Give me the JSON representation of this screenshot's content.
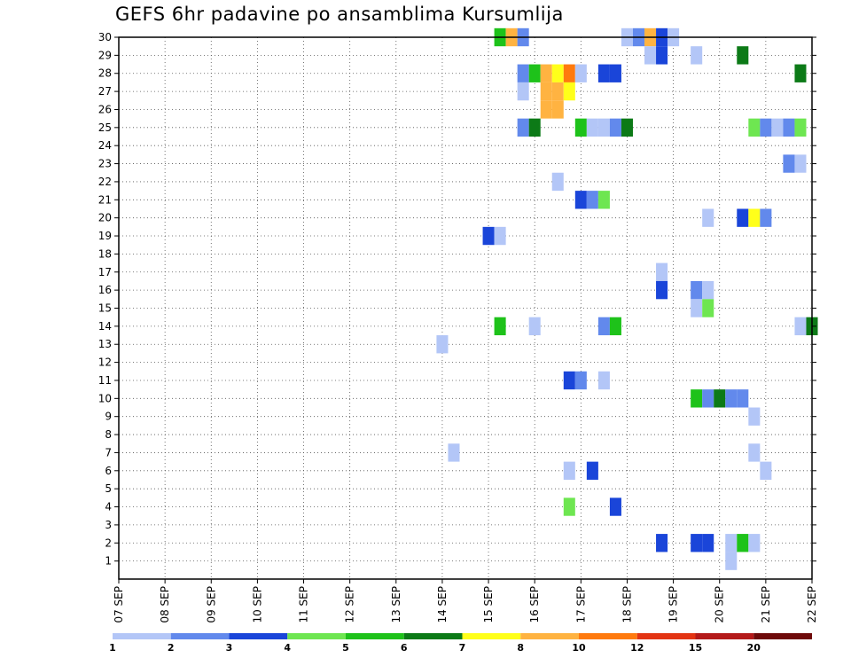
{
  "chart_data": {
    "type": "heatmap",
    "title": "GEFS 6hr padavine po ansamblima Kursumlija",
    "x_tick_labels": [
      "07 SEP",
      "08 SEP",
      "09 SEP",
      "10 SEP",
      "11 SEP",
      "12 SEP",
      "13 SEP",
      "14 SEP",
      "15 SEP",
      "16 SEP",
      "17 SEP",
      "18 SEP",
      "19 SEP",
      "20 SEP",
      "21 SEP",
      "22 SEP"
    ],
    "y_tick_labels": [
      1,
      2,
      3,
      4,
      5,
      6,
      7,
      8,
      9,
      10,
      11,
      12,
      13,
      14,
      15,
      16,
      17,
      18,
      19,
      20,
      21,
      22,
      23,
      24,
      25,
      26,
      27,
      28,
      29,
      30
    ],
    "y_range": [
      0,
      30
    ],
    "x_unit": "6h steps from 07 SEP 00Z",
    "x_range": [
      0,
      60
    ],
    "grid": true,
    "colorbar": {
      "levels": [
        1,
        2,
        3,
        4,
        5,
        6,
        7,
        8,
        10,
        12,
        15,
        20
      ],
      "colors": [
        "#b3c6f7",
        "#6289ec",
        "#1a45d9",
        "#6ee651",
        "#1ec21a",
        "#0c7a17",
        "#ffff1a",
        "#ffb341",
        "#ff7a0e",
        "#e33413",
        "#b41a1a",
        "#6e0a0a"
      ]
    },
    "cells": [
      {
        "member": 30,
        "t": 33,
        "v": 5
      },
      {
        "member": 30,
        "t": 34,
        "v": 8
      },
      {
        "member": 30,
        "t": 35,
        "v": 2
      },
      {
        "member": 30,
        "t": 44,
        "v": 1
      },
      {
        "member": 30,
        "t": 45,
        "v": 2
      },
      {
        "member": 30,
        "t": 46,
        "v": 8
      },
      {
        "member": 30,
        "t": 47,
        "v": 3
      },
      {
        "member": 30,
        "t": 48,
        "v": 1
      },
      {
        "member": 29,
        "t": 46,
        "v": 1
      },
      {
        "member": 29,
        "t": 47,
        "v": 3
      },
      {
        "member": 29,
        "t": 50,
        "v": 1
      },
      {
        "member": 29,
        "t": 54,
        "v": 6
      },
      {
        "member": 28,
        "t": 35,
        "v": 2
      },
      {
        "member": 28,
        "t": 36,
        "v": 5
      },
      {
        "member": 28,
        "t": 37,
        "v": 8
      },
      {
        "member": 28,
        "t": 38,
        "v": 7
      },
      {
        "member": 28,
        "t": 39,
        "v": 10
      },
      {
        "member": 28,
        "t": 40,
        "v": 1
      },
      {
        "member": 28,
        "t": 42,
        "v": 3
      },
      {
        "member": 28,
        "t": 43,
        "v": 3
      },
      {
        "member": 28,
        "t": 59,
        "v": 6
      },
      {
        "member": 27,
        "t": 35,
        "v": 1
      },
      {
        "member": 27,
        "t": 37,
        "v": 8
      },
      {
        "member": 27,
        "t": 38,
        "v": 8
      },
      {
        "member": 27,
        "t": 39,
        "v": 7
      },
      {
        "member": 26,
        "t": 37,
        "v": 8
      },
      {
        "member": 26,
        "t": 38,
        "v": 8
      },
      {
        "member": 25,
        "t": 35,
        "v": 2
      },
      {
        "member": 25,
        "t": 36,
        "v": 6
      },
      {
        "member": 25,
        "t": 40,
        "v": 5
      },
      {
        "member": 25,
        "t": 41,
        "v": 1
      },
      {
        "member": 25,
        "t": 42,
        "v": 1
      },
      {
        "member": 25,
        "t": 43,
        "v": 2
      },
      {
        "member": 25,
        "t": 44,
        "v": 6
      },
      {
        "member": 25,
        "t": 55,
        "v": 4
      },
      {
        "member": 25,
        "t": 56,
        "v": 2
      },
      {
        "member": 25,
        "t": 57,
        "v": 1
      },
      {
        "member": 25,
        "t": 58,
        "v": 2
      },
      {
        "member": 25,
        "t": 59,
        "v": 4
      },
      {
        "member": 23,
        "t": 58,
        "v": 2
      },
      {
        "member": 23,
        "t": 59,
        "v": 1
      },
      {
        "member": 22,
        "t": 38,
        "v": 1
      },
      {
        "member": 21,
        "t": 40,
        "v": 3
      },
      {
        "member": 21,
        "t": 41,
        "v": 2
      },
      {
        "member": 21,
        "t": 42,
        "v": 4
      },
      {
        "member": 20,
        "t": 51,
        "v": 1
      },
      {
        "member": 20,
        "t": 54,
        "v": 3
      },
      {
        "member": 20,
        "t": 55,
        "v": 7
      },
      {
        "member": 20,
        "t": 56,
        "v": 2
      },
      {
        "member": 19,
        "t": 32,
        "v": 3
      },
      {
        "member": 19,
        "t": 33,
        "v": 1
      },
      {
        "member": 17,
        "t": 47,
        "v": 1
      },
      {
        "member": 16,
        "t": 47,
        "v": 3
      },
      {
        "member": 16,
        "t": 50,
        "v": 2
      },
      {
        "member": 16,
        "t": 51,
        "v": 1
      },
      {
        "member": 15,
        "t": 50,
        "v": 1
      },
      {
        "member": 15,
        "t": 51,
        "v": 4
      },
      {
        "member": 14,
        "t": 33,
        "v": 5
      },
      {
        "member": 14,
        "t": 36,
        "v": 1
      },
      {
        "member": 14,
        "t": 42,
        "v": 2
      },
      {
        "member": 14,
        "t": 43,
        "v": 5
      },
      {
        "member": 14,
        "t": 59,
        "v": 1
      },
      {
        "member": 14,
        "t": 60,
        "v": 6
      },
      {
        "member": 13,
        "t": 28,
        "v": 1
      },
      {
        "member": 11,
        "t": 39,
        "v": 3
      },
      {
        "member": 11,
        "t": 40,
        "v": 2
      },
      {
        "member": 11,
        "t": 42,
        "v": 1
      },
      {
        "member": 10,
        "t": 50,
        "v": 5
      },
      {
        "member": 10,
        "t": 51,
        "v": 2
      },
      {
        "member": 10,
        "t": 52,
        "v": 6
      },
      {
        "member": 10,
        "t": 53,
        "v": 2
      },
      {
        "member": 10,
        "t": 54,
        "v": 2
      },
      {
        "member": 9,
        "t": 55,
        "v": 1
      },
      {
        "member": 7,
        "t": 29,
        "v": 1
      },
      {
        "member": 7,
        "t": 55,
        "v": 1
      },
      {
        "member": 6,
        "t": 39,
        "v": 1
      },
      {
        "member": 6,
        "t": 41,
        "v": 3
      },
      {
        "member": 6,
        "t": 56,
        "v": 1
      },
      {
        "member": 4,
        "t": 39,
        "v": 4
      },
      {
        "member": 4,
        "t": 43,
        "v": 3
      },
      {
        "member": 2,
        "t": 47,
        "v": 3
      },
      {
        "member": 2,
        "t": 50,
        "v": 3
      },
      {
        "member": 2,
        "t": 51,
        "v": 3
      },
      {
        "member": 2,
        "t": 53,
        "v": 1
      },
      {
        "member": 2,
        "t": 54,
        "v": 5
      },
      {
        "member": 2,
        "t": 55,
        "v": 1
      },
      {
        "member": 1,
        "t": 53,
        "v": 1
      }
    ]
  }
}
